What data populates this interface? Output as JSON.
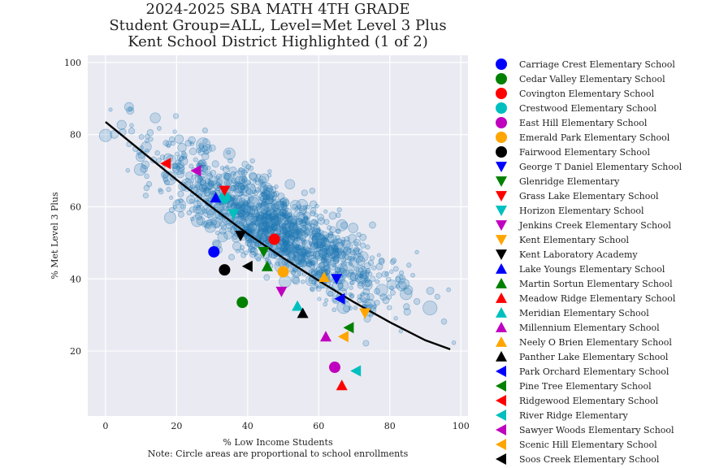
{
  "chart_data": {
    "type": "scatter",
    "title": [
      "2024-2025 SBA MATH 4TH GRADE",
      "Student Group=ALL, Level=Met Level 3 Plus",
      "Kent School District Highlighted (1 of 2)"
    ],
    "xlabel": "% Low Income Students",
    "note": "Note: Circle areas are proportional to school enrollments",
    "ylabel": "% Met Level 3 Plus",
    "xlim": [
      -5,
      102
    ],
    "ylim": [
      2,
      102
    ],
    "xticks": [
      0,
      20,
      40,
      60,
      80,
      100
    ],
    "yticks": [
      20,
      40,
      60,
      80,
      100
    ],
    "grid": true,
    "legend_position": "right",
    "background_color": "#eaeaf2",
    "background_point_color": "#1f77b4",
    "trend_line": {
      "x": [
        0,
        10,
        20,
        30,
        40,
        50,
        60,
        70,
        80,
        90,
        97
      ],
      "y": [
        83.5,
        75.5,
        67.5,
        59.8,
        52.5,
        45.8,
        39.5,
        33.5,
        28.0,
        23.0,
        20.5
      ],
      "color": "#000000"
    },
    "highlighted_schools": [
      {
        "name": "Carriage Crest Elementary School",
        "x": 30.5,
        "y": 47.5,
        "marker": "circle",
        "color": "#0000ff"
      },
      {
        "name": "Cedar Valley Elementary School",
        "x": 38.5,
        "y": 33.5,
        "marker": "circle",
        "color": "#008000"
      },
      {
        "name": "Covington Elementary School",
        "x": 47.5,
        "y": 51.0,
        "marker": "circle",
        "color": "#ff0000"
      },
      {
        "name": "Crestwood Elementary School",
        "x": 33.5,
        "y": 62.5,
        "marker": "circle",
        "color": "#00bfbf"
      },
      {
        "name": "East Hill Elementary School",
        "x": 64.5,
        "y": 15.5,
        "marker": "circle",
        "color": "#bf00bf"
      },
      {
        "name": "Emerald Park Elementary School",
        "x": 50.0,
        "y": 42.0,
        "marker": "circle",
        "color": "#ffa500"
      },
      {
        "name": "Fairwood Elementary School",
        "x": 33.5,
        "y": 42.5,
        "marker": "circle",
        "color": "#000000"
      },
      {
        "name": "George T Daniel Elementary School",
        "x": 65.0,
        "y": 40.0,
        "marker": "triangle-down",
        "color": "#0000ff"
      },
      {
        "name": "Glenridge Elementary",
        "x": 44.5,
        "y": 47.5,
        "marker": "triangle-down",
        "color": "#008000"
      },
      {
        "name": "Grass Lake Elementary School",
        "x": 33.5,
        "y": 64.5,
        "marker": "triangle-down",
        "color": "#ff0000"
      },
      {
        "name": "Horizon Elementary School",
        "x": 36.0,
        "y": 58.0,
        "marker": "triangle-down",
        "color": "#00bfbf"
      },
      {
        "name": "Jenkins Creek Elementary School",
        "x": 49.5,
        "y": 36.5,
        "marker": "triangle-down",
        "color": "#bf00bf"
      },
      {
        "name": "Kent Elementary School",
        "x": 73.0,
        "y": 30.5,
        "marker": "triangle-down",
        "color": "#ffa500"
      },
      {
        "name": "Kent Laboratory Academy",
        "x": 38.0,
        "y": 52.0,
        "marker": "triangle-down",
        "color": "#000000"
      },
      {
        "name": "Lake Youngs Elementary School",
        "x": 31.0,
        "y": 62.5,
        "marker": "triangle-up",
        "color": "#0000ff"
      },
      {
        "name": "Martin Sortun Elementary School",
        "x": 45.5,
        "y": 43.5,
        "marker": "triangle-up",
        "color": "#008000"
      },
      {
        "name": "Meadow Ridge Elementary School",
        "x": 66.5,
        "y": 10.5,
        "marker": "triangle-up",
        "color": "#ff0000"
      },
      {
        "name": "Meridian Elementary School",
        "x": 54.0,
        "y": 32.5,
        "marker": "triangle-up",
        "color": "#00bfbf"
      },
      {
        "name": "Millennium Elementary School",
        "x": 62.0,
        "y": 24.0,
        "marker": "triangle-up",
        "color": "#bf00bf"
      },
      {
        "name": "Neely O Brien Elementary School",
        "x": 61.5,
        "y": 40.5,
        "marker": "triangle-up",
        "color": "#ffa500"
      },
      {
        "name": "Panther Lake Elementary School",
        "x": 55.5,
        "y": 30.5,
        "marker": "triangle-up",
        "color": "#000000"
      },
      {
        "name": "Park Orchard Elementary School",
        "x": 66.0,
        "y": 34.5,
        "marker": "triangle-left",
        "color": "#0000ff"
      },
      {
        "name": "Pine Tree Elementary School",
        "x": 68.5,
        "y": 26.5,
        "marker": "triangle-left",
        "color": "#008000"
      },
      {
        "name": "Ridgewood Elementary School",
        "x": 17.0,
        "y": 72.0,
        "marker": "triangle-left",
        "color": "#ff0000"
      },
      {
        "name": "River Ridge Elementary",
        "x": 70.5,
        "y": 14.5,
        "marker": "triangle-left",
        "color": "#00bfbf"
      },
      {
        "name": "Sawyer Woods Elementary School",
        "x": 25.5,
        "y": 70.0,
        "marker": "triangle-left",
        "color": "#bf00bf"
      },
      {
        "name": "Scenic Hill Elementary School",
        "x": 67.0,
        "y": 24.0,
        "marker": "triangle-left",
        "color": "#ffa500"
      },
      {
        "name": "Soos Creek Elementary School",
        "x": 40.0,
        "y": 43.5,
        "marker": "triangle-left",
        "color": "#000000"
      }
    ]
  }
}
